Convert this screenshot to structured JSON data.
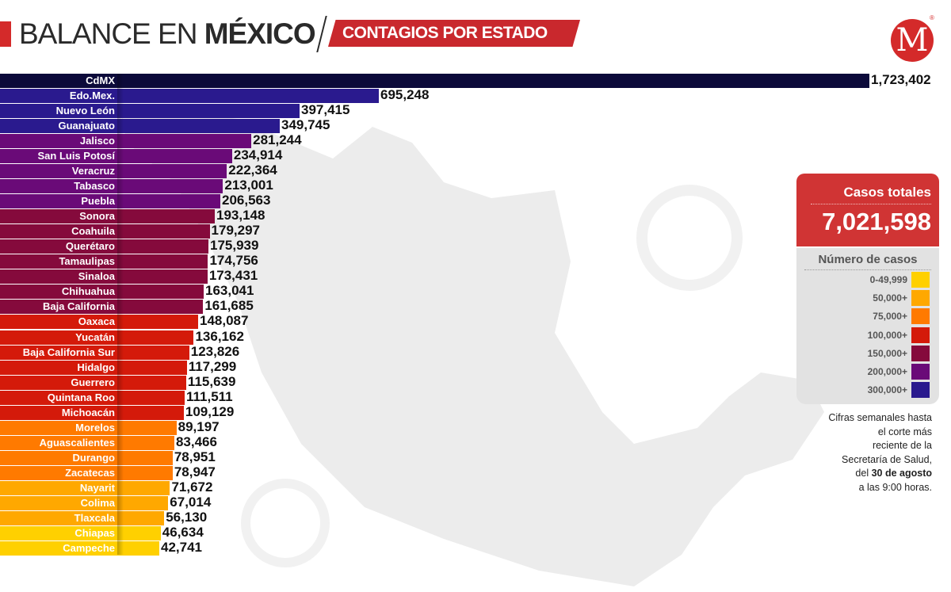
{
  "header": {
    "title_light": "BALANCE EN",
    "title_bold": "MÉXICO",
    "subtitle": "CONTAGIOS POR ESTADO",
    "logo": "M",
    "logo_mark": "®"
  },
  "totals": {
    "label": "Casos totales",
    "value": "7,021,598"
  },
  "legend": {
    "title": "Número de casos",
    "items": [
      {
        "label": "0-49,999",
        "color": "#ffd000"
      },
      {
        "label": "50,000+",
        "color": "#ffa800"
      },
      {
        "label": "75,000+",
        "color": "#ff7a00"
      },
      {
        "label": "100,000+",
        "color": "#d41a0a"
      },
      {
        "label": "150,000+",
        "color": "#850a3c"
      },
      {
        "label": "200,000+",
        "color": "#6a0a78"
      },
      {
        "label": "300,000+",
        "color": "#2a1a8e"
      }
    ]
  },
  "note": {
    "line1": "Cifras semanales hasta",
    "line2": "el corte más",
    "line3": "reciente de la",
    "line4": "Secretaría de Salud,",
    "line5_pre": "del ",
    "line5_bold": "30 de agosto",
    "line6": "a las 9:00 horas."
  },
  "chart_data": {
    "type": "bar",
    "orientation": "horizontal",
    "title": "",
    "categories": [
      "CdMX",
      "Edo.Mex.",
      "Nuevo León",
      "Guanajuato",
      "Jalisco",
      "San Luis Potosí",
      "Veracruz",
      "Tabasco",
      "Puebla",
      "Sonora",
      "Coahuila",
      "Querétaro",
      "Tamaulipas",
      "Sinaloa",
      "Chihuahua",
      "Baja California",
      "Oaxaca",
      "Yucatán",
      "Baja California Sur",
      "Hidalgo",
      "Guerrero",
      "Quintana Roo",
      "Michoacán",
      "Morelos",
      "Aguascalientes",
      "Durango",
      "Zacatecas",
      "Nayarit",
      "Colima",
      "Tlaxcala",
      "Chiapas",
      "Campeche"
    ],
    "values": [
      1723402,
      695248,
      397415,
      349745,
      281244,
      234914,
      222364,
      213001,
      206563,
      193148,
      179297,
      175939,
      174756,
      173431,
      163041,
      161685,
      148087,
      136162,
      123826,
      117299,
      115639,
      111511,
      109129,
      89197,
      83466,
      78951,
      78947,
      71672,
      67014,
      56130,
      46634,
      42741
    ],
    "labels": [
      "1,723,402",
      "695,248",
      "397,415",
      "349,745",
      "281,244",
      "234,914",
      "222,364",
      "213,001",
      "206,563",
      "193,148",
      "179,297",
      "175,939",
      "174,756",
      "173,431",
      "163,041",
      "161,685",
      "148,087",
      "136,162",
      "123,826",
      "117,299",
      "115,639",
      "111,511",
      "109,129",
      "89,197",
      "83,466",
      "78,951",
      "78,947",
      "71,672",
      "67,014",
      "56,130",
      "46,634",
      "42,741"
    ],
    "cdmx_color": "#0c0a3a"
  }
}
